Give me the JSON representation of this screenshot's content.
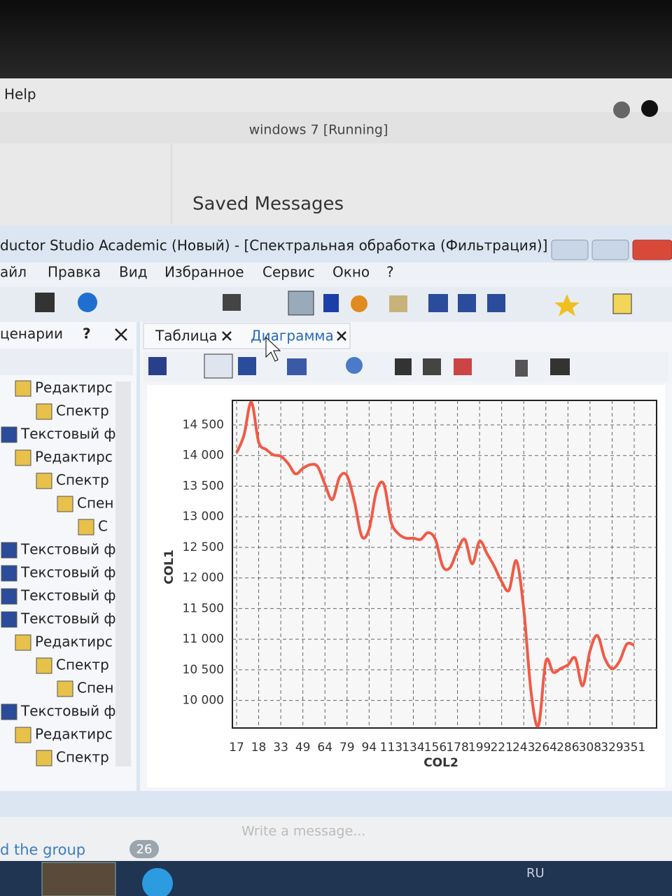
{
  "top_menu": "Help",
  "vm_title": "windows 7 [Running]",
  "chat_title": "Saved Messages",
  "window": {
    "title": "ductor Studio Academic (Новый) - [Спектральная обработка (Фильтрация)]",
    "menu": [
      "айл",
      "Правка",
      "Вид",
      "Избранное",
      "Сервис",
      "Окно",
      "?"
    ],
    "panel_title": "ценарии",
    "panel_help": "?",
    "tree": [
      "Редактирс",
      "Спектр",
      "Текстовый ф",
      "Редактирс",
      "Спектр",
      "Спен",
      "С",
      "Текстовый ф",
      "Текстовый ф",
      "Текстовый ф",
      "Текстовый ф",
      "Редактирс",
      "Спектр",
      "Спен",
      "Текстовый ф",
      "Редактирс",
      "Спектр"
    ],
    "tabs": [
      "Таблица",
      "Диаграмма"
    ]
  },
  "chart_data": {
    "type": "line",
    "x_label": "COL2",
    "y_label": "COL1",
    "categories": [
      "17",
      null,
      null,
      "18",
      null,
      null,
      "33",
      null,
      null,
      "49",
      null,
      null,
      "64",
      null,
      null,
      "79",
      null,
      null,
      "94",
      null,
      null,
      "113",
      null,
      null,
      "134",
      null,
      null,
      "156",
      null,
      null,
      "178",
      null,
      null,
      "199",
      null,
      null,
      "221",
      null,
      null,
      "243",
      null,
      null,
      "264",
      null,
      null,
      "286",
      null,
      null,
      "308",
      null,
      null,
      "329",
      null,
      null,
      "351"
    ],
    "values": [
      14045,
      14330,
      14870,
      14220,
      14100,
      14010,
      13990,
      13870,
      13700,
      13790,
      13850,
      13820,
      13530,
      13280,
      13650,
      13670,
      13250,
      12680,
      12800,
      13420,
      13530,
      12910,
      12720,
      12650,
      12650,
      12630,
      12740,
      12630,
      12190,
      12170,
      12450,
      12630,
      12230,
      12600,
      12400,
      12190,
      11940,
      11800,
      12280,
      11490,
      10130,
      9590,
      10640,
      10460,
      10520,
      10580,
      10690,
      10240,
      10810,
      11060,
      10690,
      10520,
      10640,
      10920,
      10900
    ],
    "color": "#f05a46",
    "ylim": [
      9550,
      14900
    ],
    "yticks": [
      {
        "value": 10000,
        "label": "10 000"
      },
      {
        "value": 10500,
        "label": "10 500"
      },
      {
        "value": 11000,
        "label": "11 000"
      },
      {
        "value": 11500,
        "label": "11 500"
      },
      {
        "value": 12000,
        "label": "12 000"
      },
      {
        "value": 12500,
        "label": "12 500"
      },
      {
        "value": 13000,
        "label": "13 000"
      },
      {
        "value": 13500,
        "label": "13 500"
      },
      {
        "value": 14000,
        "label": "14 000"
      },
      {
        "value": 14500,
        "label": "14 500"
      }
    ],
    "grid": true
  },
  "chat": {
    "input_hint": "Write a message...",
    "group_text": "d the group",
    "badge": "26"
  },
  "taskbar": {
    "language": "RU"
  }
}
